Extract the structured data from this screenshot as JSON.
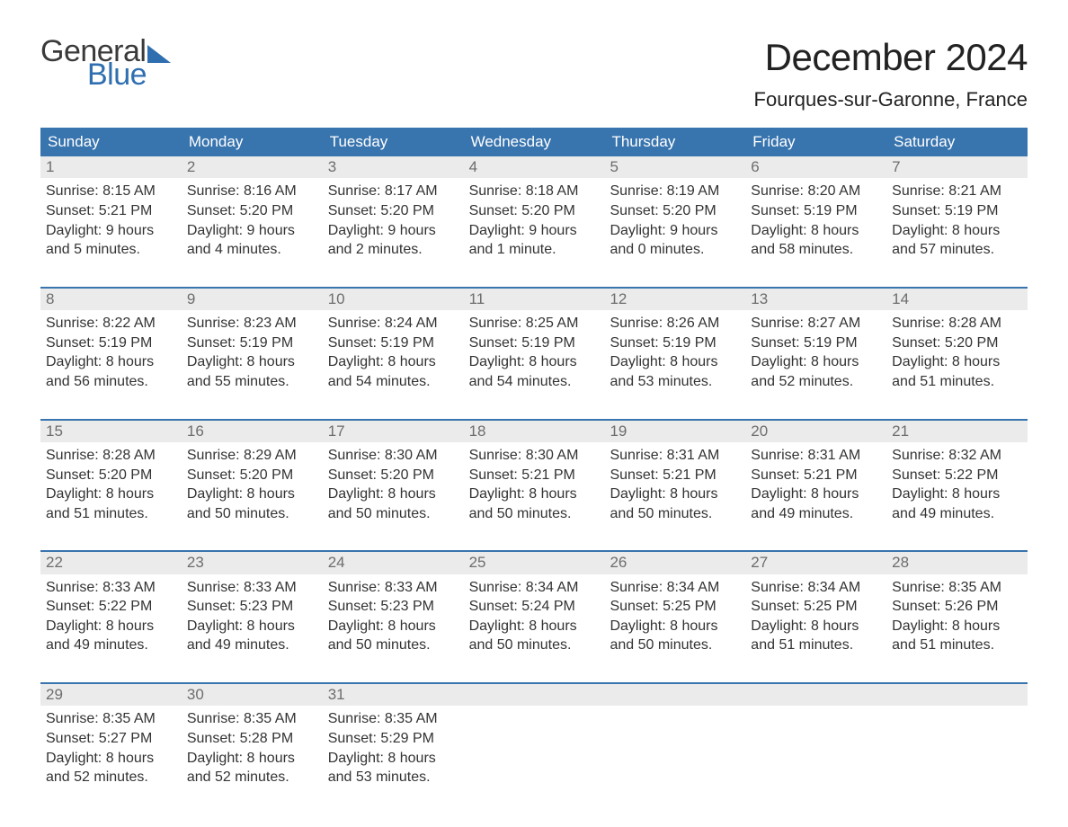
{
  "brand": {
    "word1": "General",
    "word2": "Blue"
  },
  "title": "December 2024",
  "location": "Fourques-sur-Garonne, France",
  "colors": {
    "header_bg": "#3874ae",
    "header_text": "#ffffff",
    "daynum_bg": "#ebebeb",
    "daynum_text": "#6d6d6d",
    "body_text": "#333333",
    "accent": "#2f6fb0",
    "page_bg": "#ffffff"
  },
  "typography": {
    "title_fontsize": 42,
    "location_fontsize": 22,
    "header_fontsize": 17,
    "body_fontsize": 16,
    "font_family": "Arial"
  },
  "day_headers": [
    "Sunday",
    "Monday",
    "Tuesday",
    "Wednesday",
    "Thursday",
    "Friday",
    "Saturday"
  ],
  "weeks": [
    [
      {
        "n": "1",
        "sr": "Sunrise: 8:15 AM",
        "ss": "Sunset: 5:21 PM",
        "d1": "Daylight: 9 hours",
        "d2": "and 5 minutes."
      },
      {
        "n": "2",
        "sr": "Sunrise: 8:16 AM",
        "ss": "Sunset: 5:20 PM",
        "d1": "Daylight: 9 hours",
        "d2": "and 4 minutes."
      },
      {
        "n": "3",
        "sr": "Sunrise: 8:17 AM",
        "ss": "Sunset: 5:20 PM",
        "d1": "Daylight: 9 hours",
        "d2": "and 2 minutes."
      },
      {
        "n": "4",
        "sr": "Sunrise: 8:18 AM",
        "ss": "Sunset: 5:20 PM",
        "d1": "Daylight: 9 hours",
        "d2": "and 1 minute."
      },
      {
        "n": "5",
        "sr": "Sunrise: 8:19 AM",
        "ss": "Sunset: 5:20 PM",
        "d1": "Daylight: 9 hours",
        "d2": "and 0 minutes."
      },
      {
        "n": "6",
        "sr": "Sunrise: 8:20 AM",
        "ss": "Sunset: 5:19 PM",
        "d1": "Daylight: 8 hours",
        "d2": "and 58 minutes."
      },
      {
        "n": "7",
        "sr": "Sunrise: 8:21 AM",
        "ss": "Sunset: 5:19 PM",
        "d1": "Daylight: 8 hours",
        "d2": "and 57 minutes."
      }
    ],
    [
      {
        "n": "8",
        "sr": "Sunrise: 8:22 AM",
        "ss": "Sunset: 5:19 PM",
        "d1": "Daylight: 8 hours",
        "d2": "and 56 minutes."
      },
      {
        "n": "9",
        "sr": "Sunrise: 8:23 AM",
        "ss": "Sunset: 5:19 PM",
        "d1": "Daylight: 8 hours",
        "d2": "and 55 minutes."
      },
      {
        "n": "10",
        "sr": "Sunrise: 8:24 AM",
        "ss": "Sunset: 5:19 PM",
        "d1": "Daylight: 8 hours",
        "d2": "and 54 minutes."
      },
      {
        "n": "11",
        "sr": "Sunrise: 8:25 AM",
        "ss": "Sunset: 5:19 PM",
        "d1": "Daylight: 8 hours",
        "d2": "and 54 minutes."
      },
      {
        "n": "12",
        "sr": "Sunrise: 8:26 AM",
        "ss": "Sunset: 5:19 PM",
        "d1": "Daylight: 8 hours",
        "d2": "and 53 minutes."
      },
      {
        "n": "13",
        "sr": "Sunrise: 8:27 AM",
        "ss": "Sunset: 5:19 PM",
        "d1": "Daylight: 8 hours",
        "d2": "and 52 minutes."
      },
      {
        "n": "14",
        "sr": "Sunrise: 8:28 AM",
        "ss": "Sunset: 5:20 PM",
        "d1": "Daylight: 8 hours",
        "d2": "and 51 minutes."
      }
    ],
    [
      {
        "n": "15",
        "sr": "Sunrise: 8:28 AM",
        "ss": "Sunset: 5:20 PM",
        "d1": "Daylight: 8 hours",
        "d2": "and 51 minutes."
      },
      {
        "n": "16",
        "sr": "Sunrise: 8:29 AM",
        "ss": "Sunset: 5:20 PM",
        "d1": "Daylight: 8 hours",
        "d2": "and 50 minutes."
      },
      {
        "n": "17",
        "sr": "Sunrise: 8:30 AM",
        "ss": "Sunset: 5:20 PM",
        "d1": "Daylight: 8 hours",
        "d2": "and 50 minutes."
      },
      {
        "n": "18",
        "sr": "Sunrise: 8:30 AM",
        "ss": "Sunset: 5:21 PM",
        "d1": "Daylight: 8 hours",
        "d2": "and 50 minutes."
      },
      {
        "n": "19",
        "sr": "Sunrise: 8:31 AM",
        "ss": "Sunset: 5:21 PM",
        "d1": "Daylight: 8 hours",
        "d2": "and 50 minutes."
      },
      {
        "n": "20",
        "sr": "Sunrise: 8:31 AM",
        "ss": "Sunset: 5:21 PM",
        "d1": "Daylight: 8 hours",
        "d2": "and 49 minutes."
      },
      {
        "n": "21",
        "sr": "Sunrise: 8:32 AM",
        "ss": "Sunset: 5:22 PM",
        "d1": "Daylight: 8 hours",
        "d2": "and 49 minutes."
      }
    ],
    [
      {
        "n": "22",
        "sr": "Sunrise: 8:33 AM",
        "ss": "Sunset: 5:22 PM",
        "d1": "Daylight: 8 hours",
        "d2": "and 49 minutes."
      },
      {
        "n": "23",
        "sr": "Sunrise: 8:33 AM",
        "ss": "Sunset: 5:23 PM",
        "d1": "Daylight: 8 hours",
        "d2": "and 49 minutes."
      },
      {
        "n": "24",
        "sr": "Sunrise: 8:33 AM",
        "ss": "Sunset: 5:23 PM",
        "d1": "Daylight: 8 hours",
        "d2": "and 50 minutes."
      },
      {
        "n": "25",
        "sr": "Sunrise: 8:34 AM",
        "ss": "Sunset: 5:24 PM",
        "d1": "Daylight: 8 hours",
        "d2": "and 50 minutes."
      },
      {
        "n": "26",
        "sr": "Sunrise: 8:34 AM",
        "ss": "Sunset: 5:25 PM",
        "d1": "Daylight: 8 hours",
        "d2": "and 50 minutes."
      },
      {
        "n": "27",
        "sr": "Sunrise: 8:34 AM",
        "ss": "Sunset: 5:25 PM",
        "d1": "Daylight: 8 hours",
        "d2": "and 51 minutes."
      },
      {
        "n": "28",
        "sr": "Sunrise: 8:35 AM",
        "ss": "Sunset: 5:26 PM",
        "d1": "Daylight: 8 hours",
        "d2": "and 51 minutes."
      }
    ],
    [
      {
        "n": "29",
        "sr": "Sunrise: 8:35 AM",
        "ss": "Sunset: 5:27 PM",
        "d1": "Daylight: 8 hours",
        "d2": "and 52 minutes."
      },
      {
        "n": "30",
        "sr": "Sunrise: 8:35 AM",
        "ss": "Sunset: 5:28 PM",
        "d1": "Daylight: 8 hours",
        "d2": "and 52 minutes."
      },
      {
        "n": "31",
        "sr": "Sunrise: 8:35 AM",
        "ss": "Sunset: 5:29 PM",
        "d1": "Daylight: 8 hours",
        "d2": "and 53 minutes."
      },
      {
        "empty": true
      },
      {
        "empty": true
      },
      {
        "empty": true
      },
      {
        "empty": true
      }
    ]
  ]
}
